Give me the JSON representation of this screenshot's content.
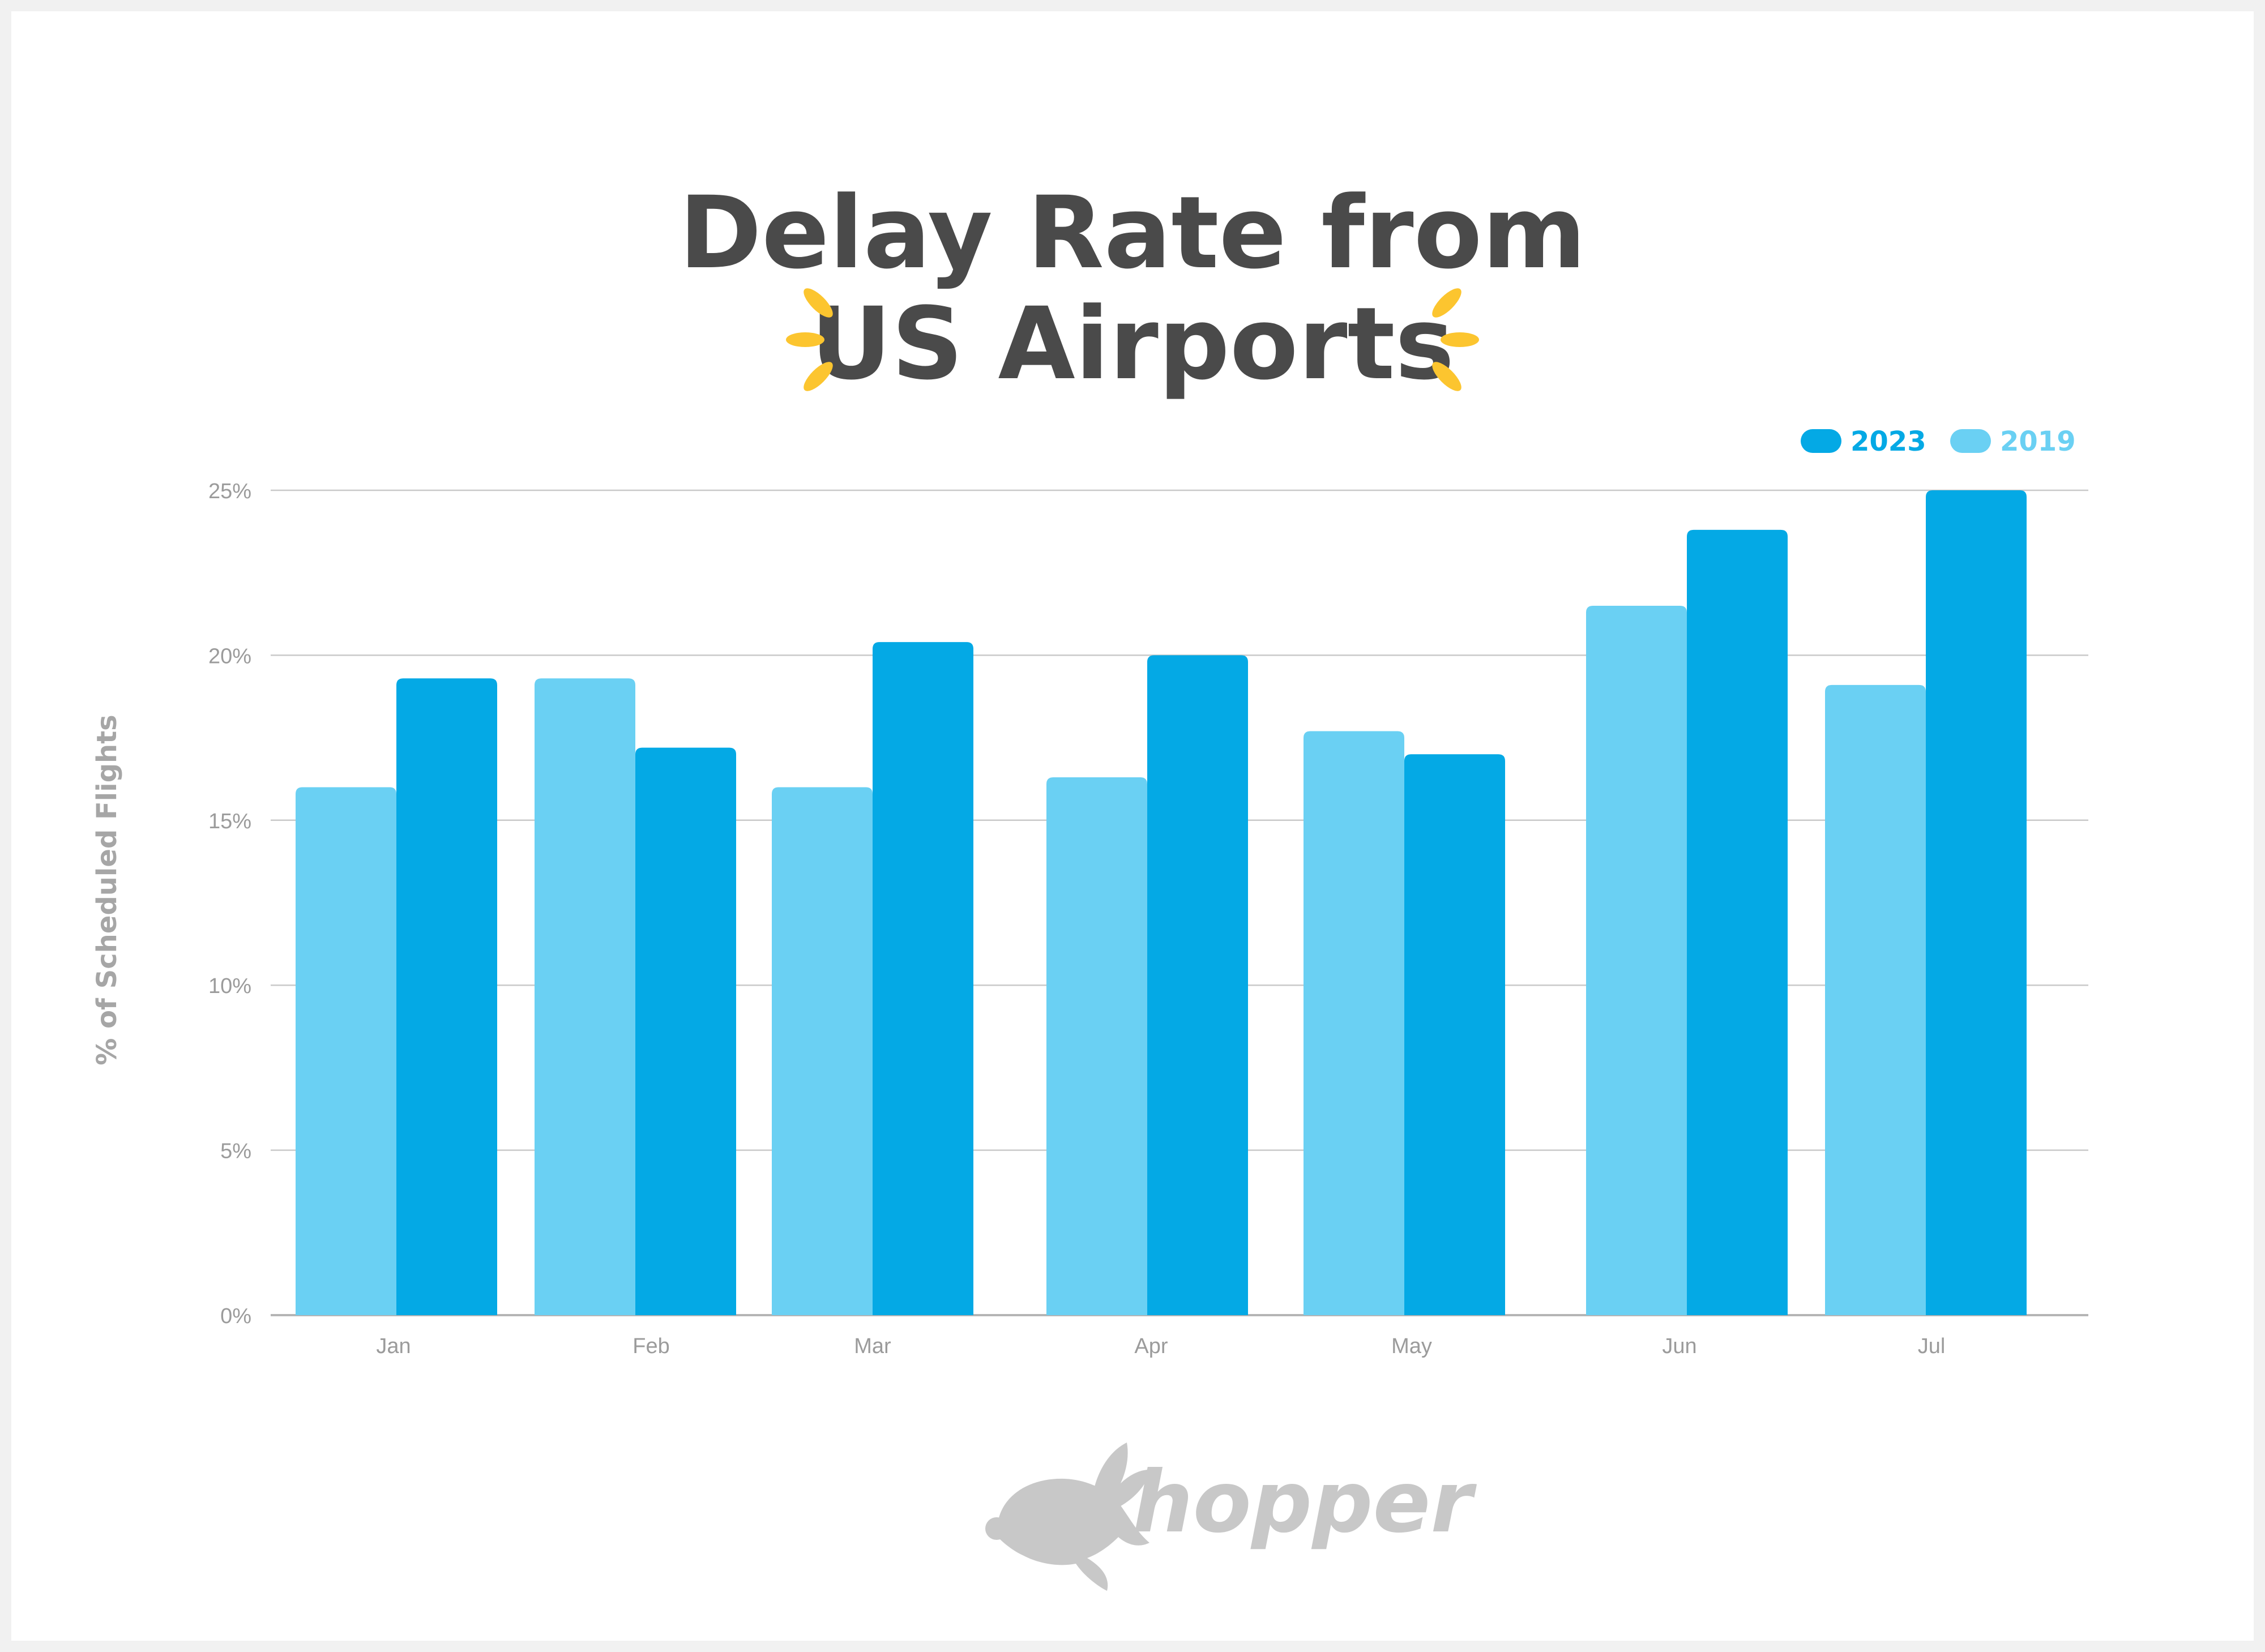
{
  "chart_data": {
    "type": "bar",
    "title_lines": [
      "Delay Rate from",
      "US Airports"
    ],
    "categories": [
      "Jan",
      "Feb",
      "Mar",
      "Apr",
      "May",
      "Jun",
      "Jul"
    ],
    "series": [
      {
        "name": "2019",
        "color": "#6ad0f3",
        "values": [
          16.0,
          19.3,
          16.0,
          16.3,
          17.7,
          21.5,
          19.1
        ]
      },
      {
        "name": "2023",
        "color": "#04a9e5",
        "values": [
          19.3,
          17.2,
          20.4,
          20.0,
          17.0,
          23.8,
          25.0
        ]
      }
    ],
    "ylabel": "% of Scheduled Flights",
    "xlabel": "",
    "ylim": [
      0,
      25
    ],
    "yticks": [
      0,
      5,
      10,
      15,
      20,
      25
    ],
    "ytick_labels": [
      "0%",
      "5%",
      "10%",
      "15%",
      "20%",
      "25%"
    ],
    "legend": {
      "placement": "top-right",
      "order": [
        "2023",
        "2019"
      ]
    },
    "grid": true
  },
  "brand": {
    "logo_text": "hopper",
    "sparkle_color": "#fcc52f",
    "title_color": "#4a4a4a"
  }
}
